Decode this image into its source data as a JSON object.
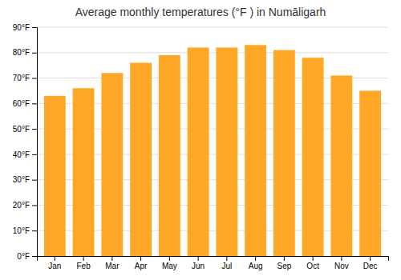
{
  "chart_data": {
    "type": "bar",
    "title": "Average monthly temperatures (°F ) in Numāligarh",
    "categories": [
      "Jan",
      "Feb",
      "Mar",
      "Apr",
      "May",
      "Jun",
      "Jul",
      "Aug",
      "Sep",
      "Oct",
      "Nov",
      "Dec"
    ],
    "values": [
      63,
      66,
      72,
      76,
      79,
      82,
      82,
      83,
      81,
      78,
      71,
      65
    ],
    "color": "#FFA726",
    "ylim": [
      0,
      90
    ],
    "yticks": [
      {
        "value": 0,
        "label": "0°F"
      },
      {
        "value": 10,
        "label": "10°F"
      },
      {
        "value": 20,
        "label": "20°F"
      },
      {
        "value": 30,
        "label": "30°F"
      },
      {
        "value": 40,
        "label": "40°F"
      },
      {
        "value": 50,
        "label": "50°F"
      },
      {
        "value": 60,
        "label": "60°F"
      },
      {
        "value": 70,
        "label": "70°F"
      },
      {
        "value": 80,
        "label": "80°F"
      },
      {
        "value": 90,
        "label": "90°F"
      }
    ],
    "grid": true
  }
}
